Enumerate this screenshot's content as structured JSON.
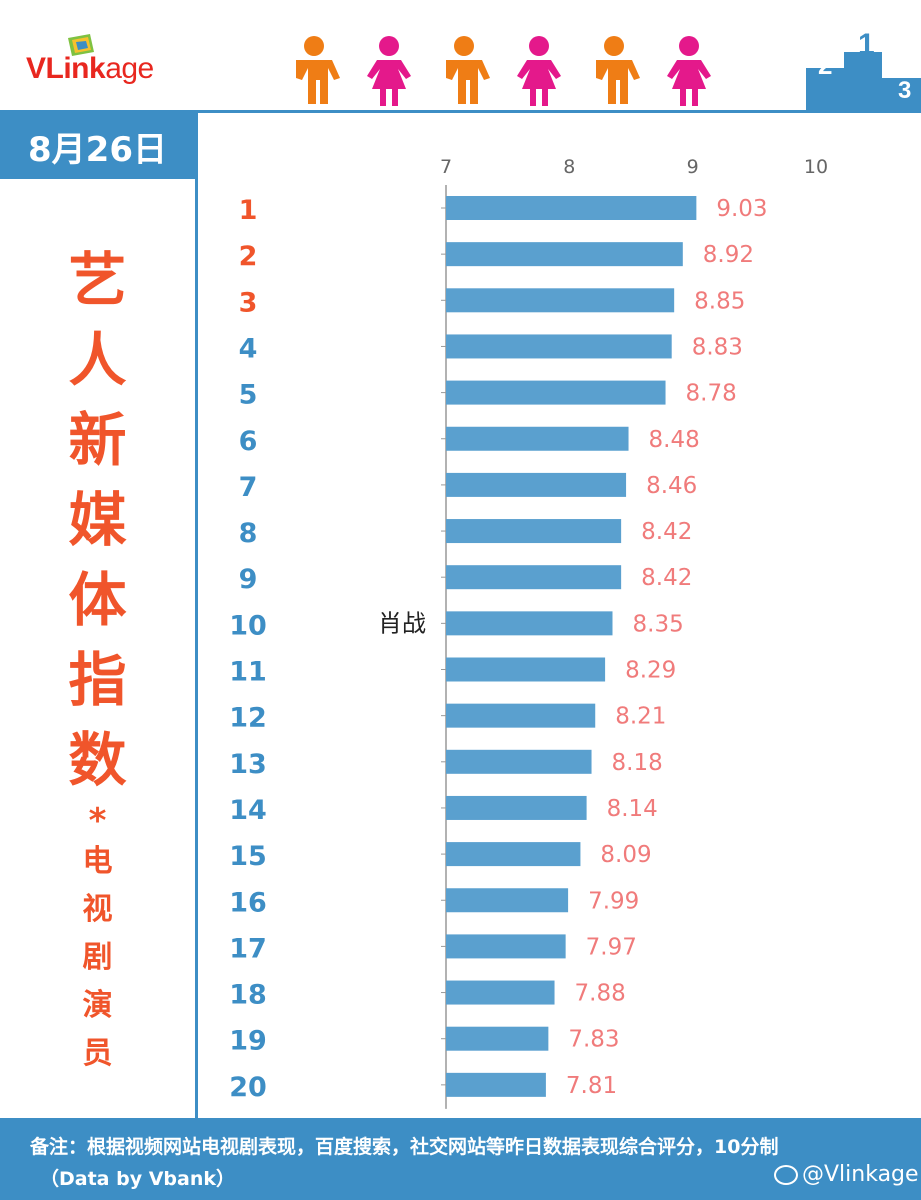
{
  "brand": {
    "logo_prefix": "VLink",
    "logo_suffix": "age"
  },
  "date": "8月26日",
  "side_title": {
    "main": [
      "艺",
      "人",
      "新",
      "媒",
      "体",
      "指",
      "数"
    ],
    "star": "*",
    "sub": [
      "电",
      "视",
      "剧",
      "演",
      "员"
    ]
  },
  "chart_data": {
    "type": "bar",
    "orientation": "horizontal",
    "xlim": [
      7,
      10
    ],
    "xticks": [
      7,
      8,
      9,
      10
    ],
    "categories": [
      "1",
      "2",
      "3",
      "4",
      "5",
      "6",
      "7",
      "8",
      "9",
      "10",
      "11",
      "12",
      "13",
      "14",
      "15",
      "16",
      "17",
      "18",
      "19",
      "20"
    ],
    "names": [
      "",
      "",
      "",
      "",
      "",
      "",
      "",
      "",
      "",
      "肖战",
      "",
      "",
      "",
      "",
      "",
      "",
      "",
      "",
      "",
      ""
    ],
    "values": [
      9.03,
      8.92,
      8.85,
      8.83,
      8.78,
      8.48,
      8.46,
      8.42,
      8.42,
      8.35,
      8.29,
      8.21,
      8.18,
      8.14,
      8.09,
      7.99,
      7.97,
      7.88,
      7.83,
      7.81
    ],
    "value_labels": [
      "9.03",
      "8.92",
      "8.85",
      "8.83",
      "8.78",
      "8.48",
      "8.46",
      "8.42",
      "8.42",
      "8.35",
      "8.29",
      "8.21",
      "8.18",
      "8.14",
      "8.09",
      "7.99",
      "7.97",
      "7.88",
      "7.83",
      "7.81"
    ],
    "colors": {
      "bar": "#5aa0cf",
      "value_label": "#f07b7b",
      "rank_top": "#f0552b",
      "rank": "#3d8ec5",
      "axis": "#999999"
    }
  },
  "footer": {
    "note": "备注：根据视频网站电视剧表现，百度搜索，社交网站等昨日数据表现综合评分，10分制",
    "source": "（Data by Vbank）",
    "weibo": "@Vlinkage"
  }
}
